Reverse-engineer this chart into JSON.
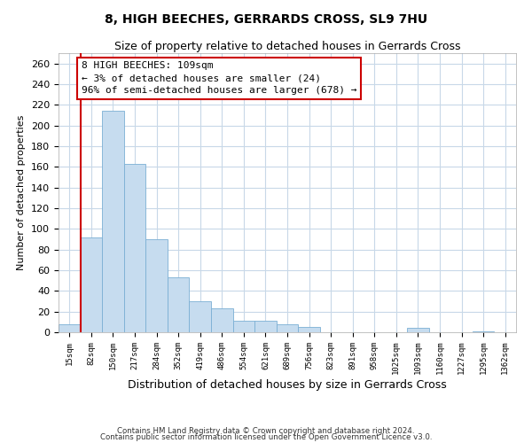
{
  "title": "8, HIGH BEECHES, GERRARDS CROSS, SL9 7HU",
  "subtitle": "Size of property relative to detached houses in Gerrards Cross",
  "xlabel": "Distribution of detached houses by size in Gerrards Cross",
  "ylabel": "Number of detached properties",
  "bin_labels": [
    "15sqm",
    "82sqm",
    "150sqm",
    "217sqm",
    "284sqm",
    "352sqm",
    "419sqm",
    "486sqm",
    "554sqm",
    "621sqm",
    "689sqm",
    "756sqm",
    "823sqm",
    "891sqm",
    "958sqm",
    "1025sqm",
    "1093sqm",
    "1160sqm",
    "1227sqm",
    "1295sqm",
    "1362sqm"
  ],
  "bar_heights": [
    8,
    92,
    214,
    163,
    90,
    53,
    30,
    23,
    11,
    11,
    8,
    5,
    0,
    0,
    0,
    0,
    4,
    0,
    0,
    1,
    0
  ],
  "bar_color": "#c6dcef",
  "bar_edge_color": "#7bafd4",
  "vline_x": 0.5,
  "vline_color": "#cc0000",
  "annotation_lines": [
    "8 HIGH BEECHES: 109sqm",
    "← 3% of detached houses are smaller (24)",
    "96% of semi-detached houses are larger (678) →"
  ],
  "annotation_box_color": "#ffffff",
  "annotation_box_edge_color": "#cc0000",
  "ylim": [
    0,
    270
  ],
  "yticks": [
    0,
    20,
    40,
    60,
    80,
    100,
    120,
    140,
    160,
    180,
    200,
    220,
    240,
    260
  ],
  "footer_line1": "Contains HM Land Registry data © Crown copyright and database right 2024.",
  "footer_line2": "Contains public sector information licensed under the Open Government Licence v3.0.",
  "background_color": "#ffffff",
  "grid_color": "#c8d8e8"
}
